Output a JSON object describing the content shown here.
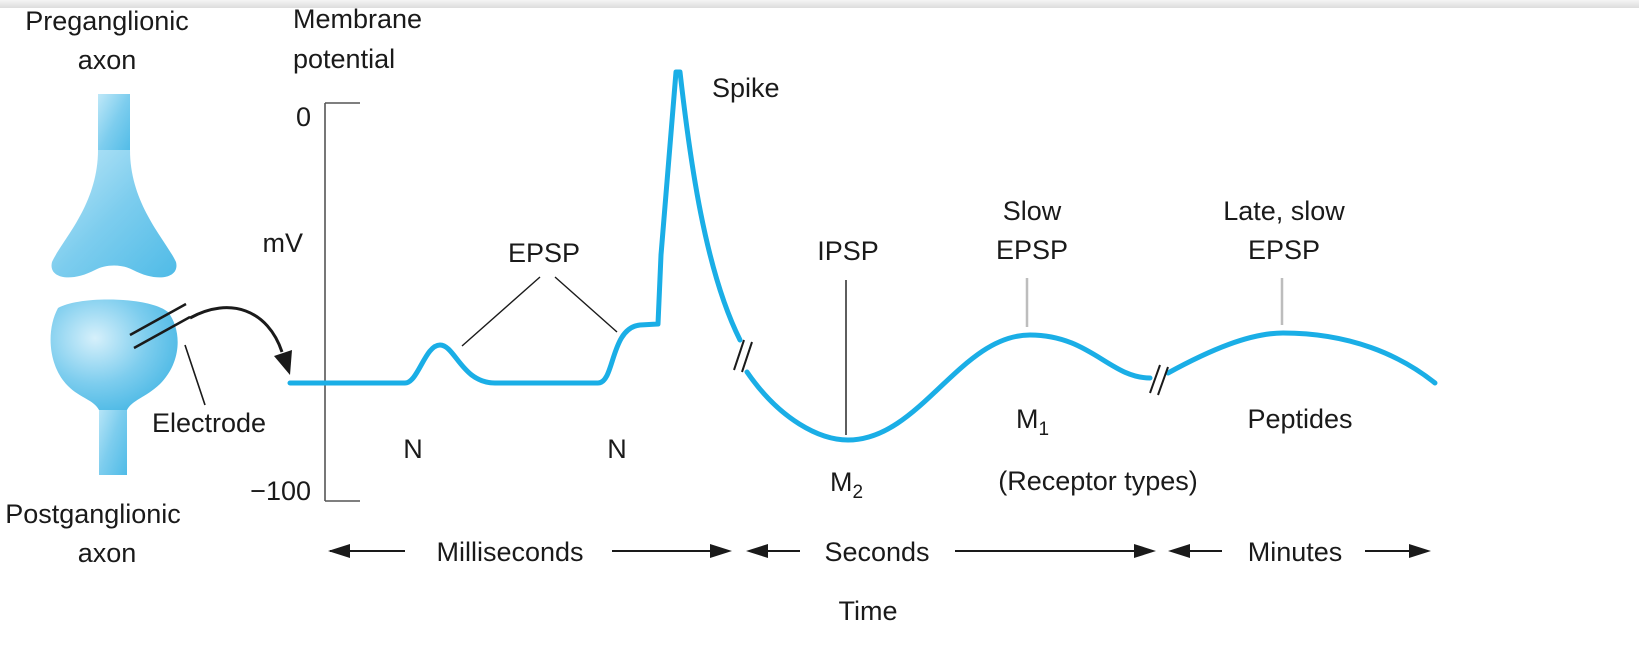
{
  "labels": {
    "preganglionic_line1": "Preganglionic",
    "preganglionic_line2": "axon",
    "membrane_line1": "Membrane",
    "membrane_line2": "potential",
    "tick_zero": "0",
    "unit_mv": "mV",
    "tick_minus100": "−100",
    "spike": "Spike",
    "epsp": "EPSP",
    "ipsp": "IPSP",
    "slow_epsp_line1": "Slow",
    "slow_epsp_line2": "EPSP",
    "late_slow_line1": "Late, slow",
    "late_slow_line2": "EPSP",
    "electrode": "Electrode",
    "n_first": "N",
    "n_second": "N",
    "m2_base": "M",
    "m2_sub": "2",
    "m1_base": "M",
    "m1_sub": "1",
    "peptides": "Peptides",
    "receptor_types": "(Receptor types)",
    "postganglionic_line1": "Postganglionic",
    "postganglionic_line2": "axon",
    "milliseconds": "Milliseconds",
    "seconds": "Seconds",
    "minutes": "Minutes",
    "time": "Time"
  },
  "colors": {
    "trace": "#1aaee6",
    "neuron_fill": "#7dcdee",
    "neuron_stroke": "#3fb4e4",
    "ink": "#1a1a1a",
    "pointer_gray": "#bdbdbd"
  }
}
